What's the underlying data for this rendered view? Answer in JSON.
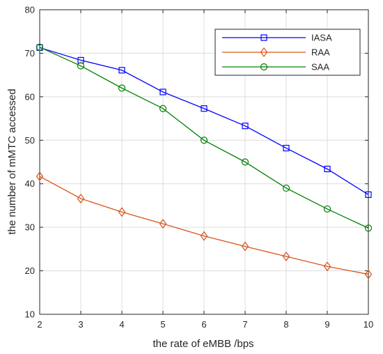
{
  "chart_data": {
    "type": "line",
    "title": "",
    "xlabel": "the rate of eMBB /bps",
    "ylabel": "the number of mMTC accessed",
    "x": [
      2,
      3,
      4,
      5,
      6,
      7,
      8,
      9,
      10
    ],
    "xlim": [
      2,
      10
    ],
    "ylim": [
      10,
      80
    ],
    "xticks": [
      "2",
      "3",
      "4",
      "5",
      "6",
      "7",
      "8",
      "9",
      "10"
    ],
    "yticks": [
      "10",
      "20",
      "30",
      "40",
      "50",
      "60",
      "70",
      "80"
    ],
    "grid": true,
    "legend_position": "top-right",
    "series": [
      {
        "name": "IASA",
        "color": "#0000ff",
        "marker": "square",
        "values": [
          71.3,
          68.4,
          66.1,
          61.1,
          57.3,
          53.3,
          48.2,
          43.4,
          37.5
        ]
      },
      {
        "name": "RAA",
        "color": "#d95319",
        "marker": "diamond",
        "values": [
          41.7,
          36.6,
          33.5,
          30.8,
          28.0,
          25.6,
          23.3,
          21.0,
          19.2
        ]
      },
      {
        "name": "SAA",
        "color": "#008000",
        "marker": "circle",
        "values": [
          71.4,
          67.1,
          62.0,
          57.3,
          50.0,
          45.0,
          39.0,
          34.2,
          29.8
        ]
      }
    ]
  }
}
